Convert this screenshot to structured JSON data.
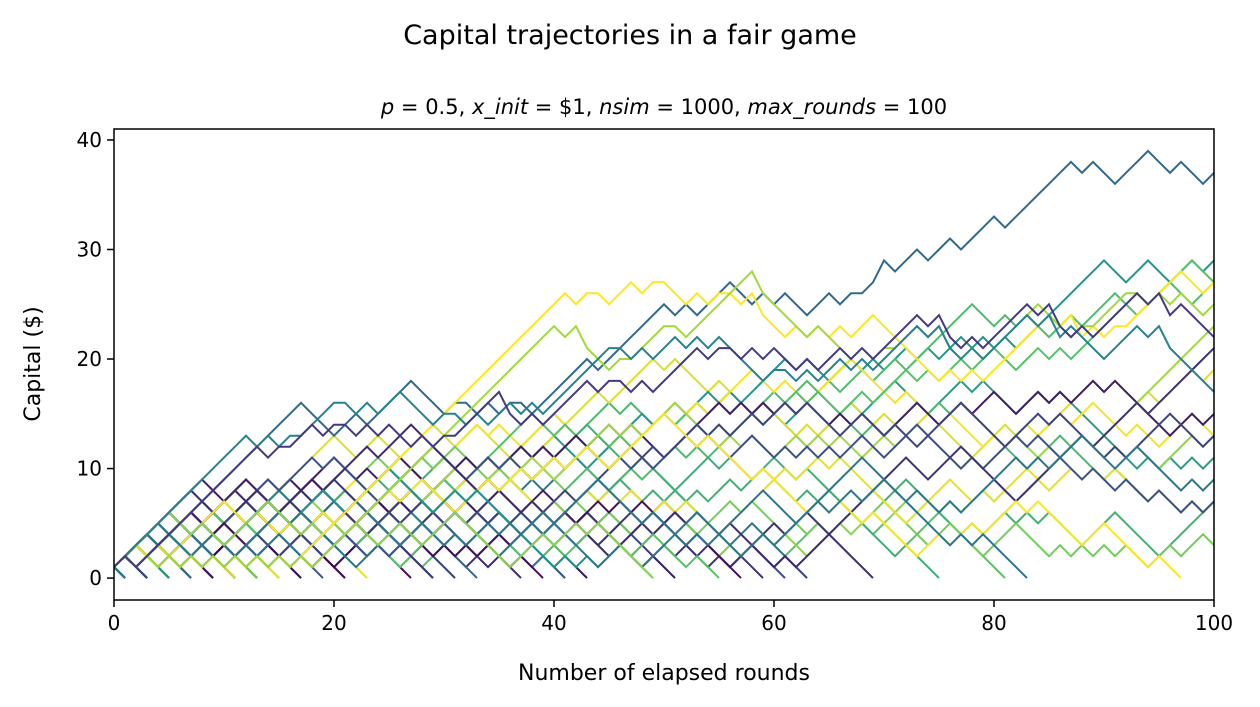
{
  "chart_data": {
    "type": "line",
    "title": "Capital trajectories in a fair game",
    "subtitle_parts": [
      {
        "text": "p",
        "italic": true
      },
      {
        "text": " = 0.5, ",
        "italic": false
      },
      {
        "text": "x_init",
        "italic": true
      },
      {
        "text": " = $1, ",
        "italic": false
      },
      {
        "text": "nsim",
        "italic": true
      },
      {
        "text": " = 1000, ",
        "italic": false
      },
      {
        "text": "max_rounds",
        "italic": true
      },
      {
        "text": " = 100",
        "italic": false
      }
    ],
    "xlabel": "Number of elapsed rounds",
    "ylabel": "Capital ($)",
    "xlim": [
      0,
      100
    ],
    "ylim": [
      -2,
      41
    ],
    "xticks": [
      0,
      20,
      40,
      60,
      80,
      100
    ],
    "yticks": [
      0,
      10,
      20,
      30,
      40
    ],
    "colormap": [
      "#440154",
      "#3b528b",
      "#21918c",
      "#5ec962",
      "#fde725"
    ],
    "series_generated": {
      "total": 1000,
      "x_init": 1,
      "p": 0.5,
      "max_rounds": 100,
      "shown_count": 170
    },
    "highlight_series": [
      {
        "color": "#31688e",
        "x": [
          0,
          16,
          18,
          21,
          26,
          28,
          31,
          36,
          42,
          49,
          51,
          56,
          58,
          61,
          63,
          65,
          67,
          69,
          72,
          75,
          79,
          86,
          89,
          91,
          94,
          97,
          99,
          100
        ],
        "y": [
          1,
          15,
          15,
          14,
          17,
          17,
          15,
          15,
          19,
          24,
          24,
          27,
          25,
          26,
          24,
          26,
          25,
          28,
          29,
          30,
          32,
          37,
          38,
          36,
          39,
          38,
          36,
          37
        ]
      },
      {
        "color": "#fde725",
        "x": [
          0,
          38,
          43,
          45,
          49,
          51,
          55,
          58,
          61,
          63,
          65,
          69,
          73,
          80,
          83,
          87,
          91,
          97,
          99,
          100
        ],
        "y": [
          1,
          23,
          25,
          25,
          26,
          26,
          25,
          25,
          22,
          22,
          22,
          24,
          18,
          19,
          22,
          23,
          22,
          28,
          26,
          27
        ]
      },
      {
        "color": "#a0da39",
        "x": [
          0,
          38,
          42,
          46,
          50,
          55,
          58,
          62,
          66,
          70,
          75,
          80,
          84,
          88,
          92,
          97,
          100
        ],
        "y": [
          1,
          21,
          22,
          19,
          22,
          25,
          27,
          23,
          21,
          20,
          22,
          21,
          25,
          22,
          25,
          26,
          24
        ]
      },
      {
        "color": "#26828e",
        "x": [
          0,
          12,
          16,
          20,
          26,
          30,
          35,
          40,
          45,
          50,
          55,
          60,
          65,
          70,
          75,
          80,
          85,
          90,
          95,
          100
        ],
        "y": [
          1,
          13,
          12,
          15,
          17,
          14,
          15,
          16,
          20,
          21,
          22,
          18,
          19,
          20,
          22,
          21,
          23,
          20,
          22,
          17
        ]
      },
      {
        "color": "#443983",
        "x": [
          0,
          10,
          15,
          20,
          25,
          30,
          35,
          40,
          45,
          50,
          55,
          60,
          65,
          70,
          75,
          80,
          85,
          90,
          95,
          100
        ],
        "y": [
          1,
          9,
          11,
          13,
          14,
          12,
          16,
          15,
          17,
          18,
          20,
          21,
          20,
          21,
          23,
          22,
          24,
          23,
          25,
          22
        ]
      }
    ]
  }
}
